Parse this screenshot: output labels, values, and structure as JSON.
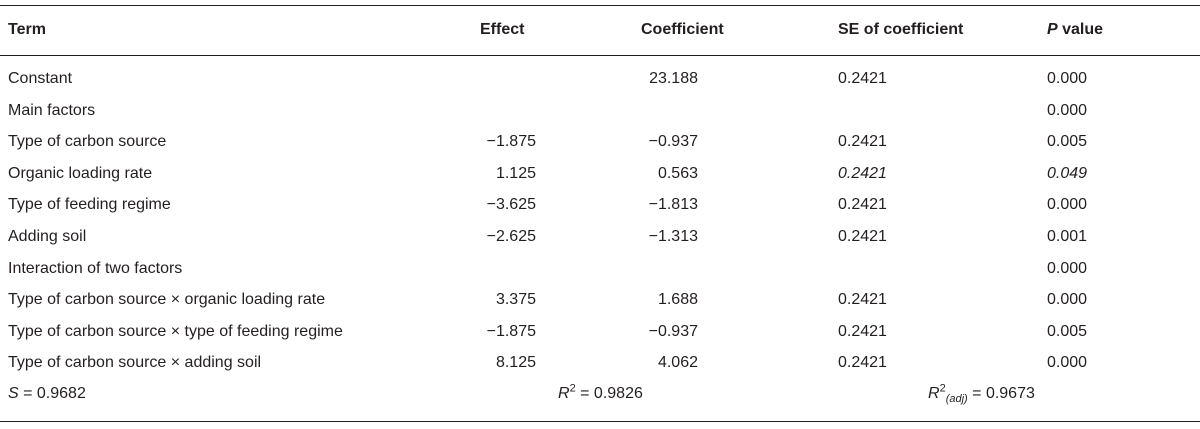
{
  "headers": {
    "term": "Term",
    "effect": "Effect",
    "coefficient": "Coefficient",
    "se": "SE of coefficient",
    "p_italic": "P",
    "p_rest": " value"
  },
  "rows": [
    {
      "term": "Constant",
      "effect": "",
      "coef": "23.188",
      "se": "0.2421",
      "p": "0.000",
      "italic": false
    },
    {
      "term": "Main factors",
      "effect": "",
      "coef": "",
      "se": "",
      "p": "0.000",
      "italic": false
    },
    {
      "term": "Type of carbon source",
      "effect": "−1.875",
      "coef": "−0.937",
      "se": "0.2421",
      "p": "0.005",
      "italic": false
    },
    {
      "term": "Organic loading rate",
      "effect": "1.125",
      "coef": "0.563",
      "se": "0.2421",
      "p": "0.049",
      "italic": true
    },
    {
      "term": "Type of feeding regime",
      "effect": "−3.625",
      "coef": "−1.813",
      "se": "0.2421",
      "p": "0.000",
      "italic": false
    },
    {
      "term": "Adding soil",
      "effect": "−2.625",
      "coef": "−1.313",
      "se": "0.2421",
      "p": "0.001",
      "italic": false
    },
    {
      "term": "Interaction of two factors",
      "effect": "",
      "coef": "",
      "se": "",
      "p": "0.000",
      "italic": false
    },
    {
      "term": "Type of carbon source × organic loading rate",
      "effect": "3.375",
      "coef": "1.688",
      "se": "0.2421",
      "p": "0.000",
      "italic": false
    },
    {
      "term": "Type of carbon source × type of feeding regime",
      "effect": "−1.875",
      "coef": "−0.937",
      "se": "0.2421",
      "p": "0.005",
      "italic": false
    },
    {
      "term": "Type of carbon source × adding soil",
      "effect": "8.125",
      "coef": "4.062",
      "se": "0.2421",
      "p": "0.000",
      "italic": false
    }
  ],
  "stats": {
    "s_label": "S",
    "s_value": " = 0.9682",
    "r2_label": "R",
    "r2_sup": "2",
    "r2_value": " = 0.9826",
    "r2adj_label": "R",
    "r2adj_sup": "2",
    "r2adj_sub": "(adj)",
    "r2adj_value": " = 0.9673"
  }
}
